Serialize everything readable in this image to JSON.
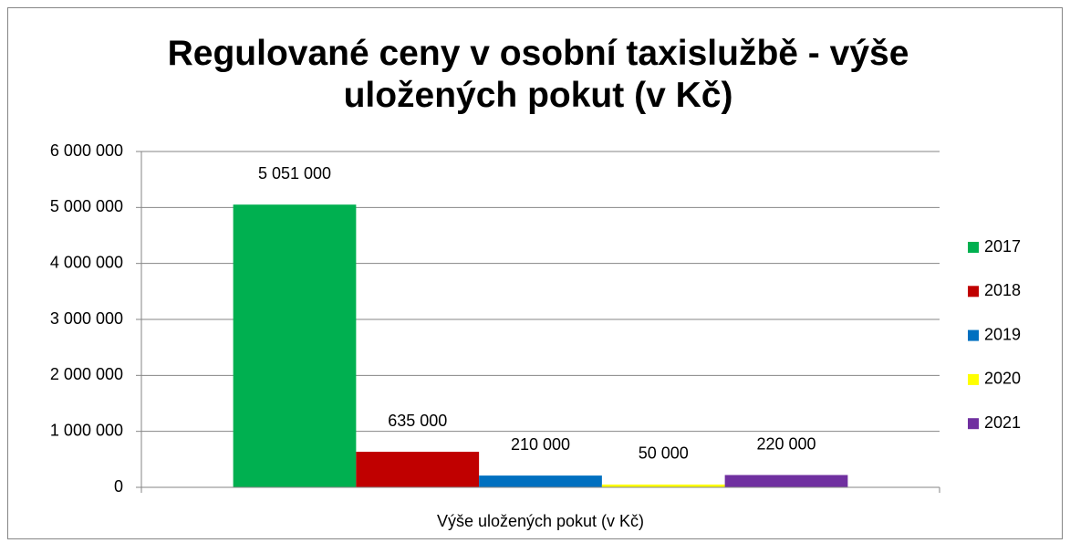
{
  "chart_data": {
    "type": "bar",
    "title": "Regulované ceny v osobní taxislužbě - výše uložených pokut (v Kč)",
    "categories": [
      "Výše uložených pokut (v Kč)"
    ],
    "series": [
      {
        "name": "2017",
        "color": "#00b050",
        "values": [
          5051000
        ],
        "value_labels": [
          "5 051 000"
        ]
      },
      {
        "name": "2018",
        "color": "#c00000",
        "values": [
          635000
        ],
        "value_labels": [
          "635 000"
        ]
      },
      {
        "name": "2019",
        "color": "#0070c0",
        "values": [
          210000
        ],
        "value_labels": [
          "210 000"
        ]
      },
      {
        "name": "2020",
        "color": "#ffff00",
        "values": [
          50000
        ],
        "value_labels": [
          "50 000"
        ]
      },
      {
        "name": "2021",
        "color": "#7030a0",
        "values": [
          220000
        ],
        "value_labels": [
          "220 000"
        ]
      }
    ],
    "ylim": [
      0,
      6000000
    ],
    "yticks": [
      0,
      {
        "value": 1000000,
        "label": "1 000 000"
      },
      {
        "value": 2000000,
        "label": "2 000 000"
      },
      {
        "value": 3000000,
        "label": "3 000 000"
      },
      {
        "value": 4000000,
        "label": "4 000 000"
      },
      {
        "value": 5000000,
        "label": "5 000 000"
      },
      {
        "value": 6000000,
        "label": "6 000 000"
      }
    ],
    "grid": true,
    "legend": "right"
  }
}
